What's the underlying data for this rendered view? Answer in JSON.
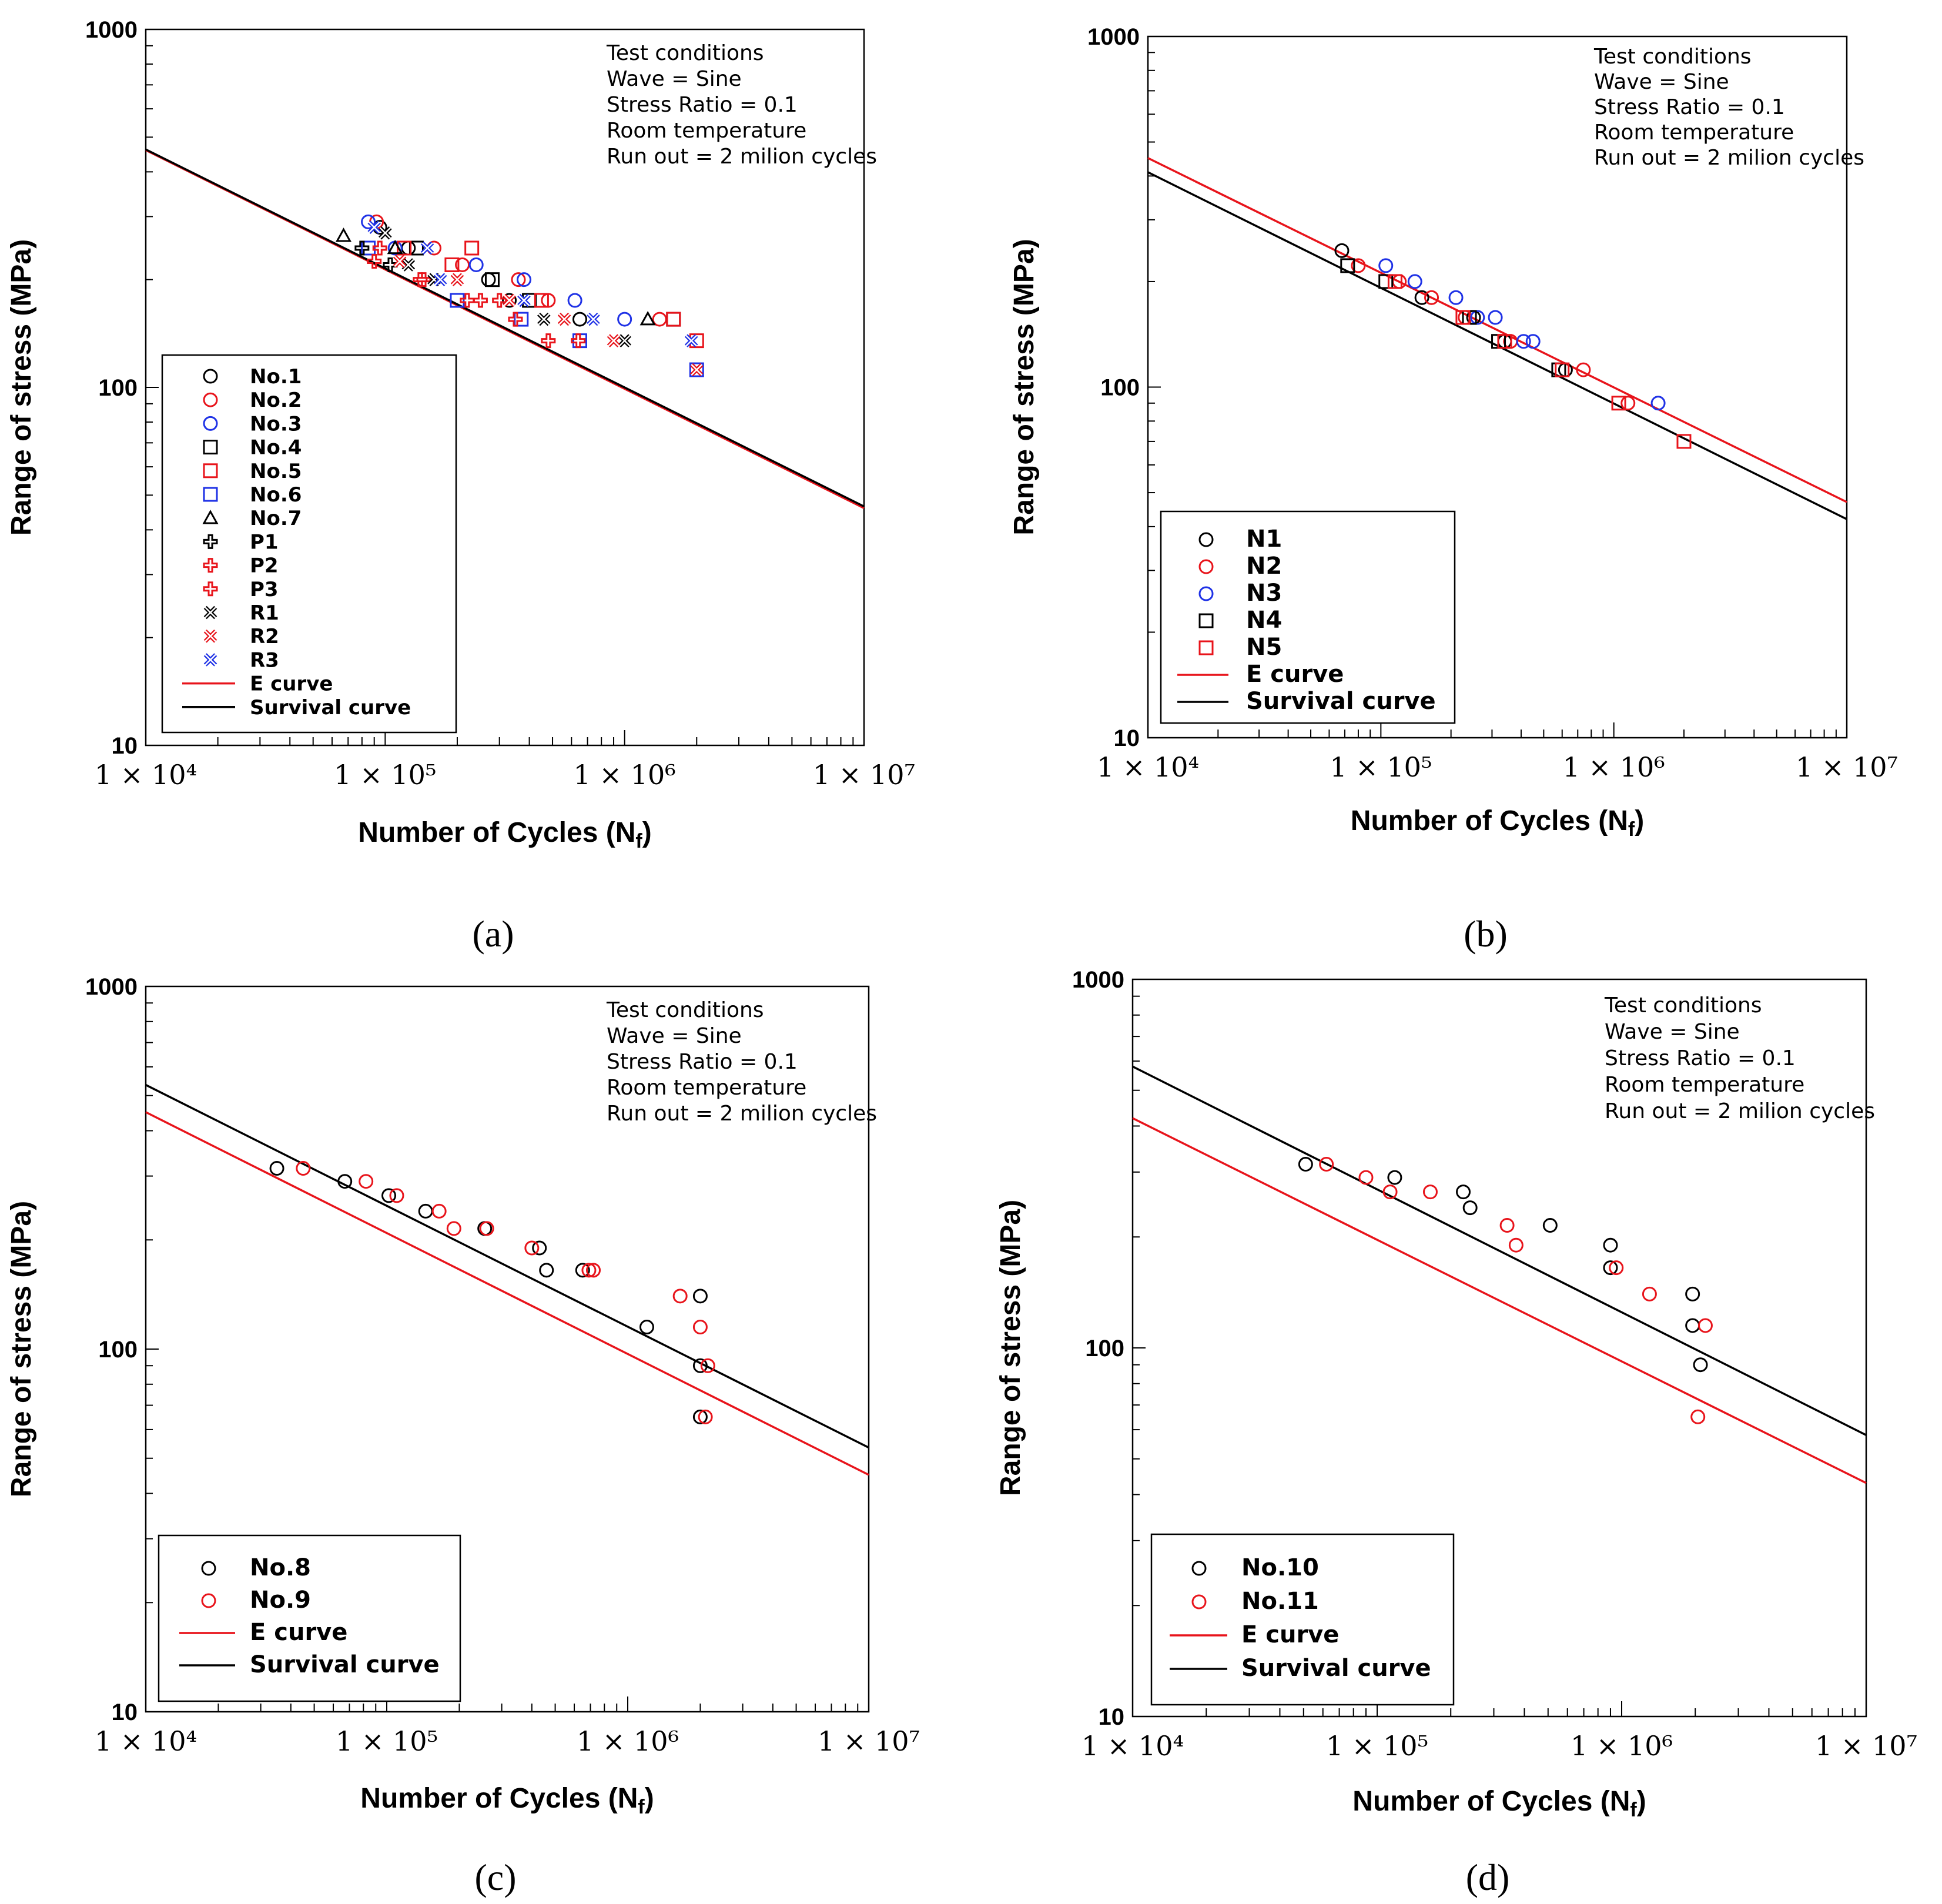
{
  "colors": {
    "black": "#000000",
    "red": "#e8141b",
    "blue": "#1f32e6"
  },
  "chart_data": [
    {
      "id": "a",
      "type": "scatter",
      "panel_label": "(a)",
      "xlabel_text": "Number of Cycles (N",
      "xlabel_sub": "f",
      "xlabel_close": ")",
      "ylabel": "Range of stress (MPa)",
      "xscale": "log",
      "yscale": "log",
      "xlim": [
        10000,
        10000000
      ],
      "ylim": [
        10,
        1000
      ],
      "x_ticks": [
        "1 × 10⁴",
        "1 × 10⁵",
        "1 × 10⁶",
        "1 × 10⁷"
      ],
      "y_ticks": [
        "10",
        "100",
        "1000"
      ],
      "conditions": [
        "Test conditions",
        "Wave = Sine",
        "Stress Ratio = 0.1",
        "Room temperature",
        "Run out = 2 milion cycles"
      ],
      "lines": [
        {
          "name": "E curve",
          "color": "red",
          "points": [
            [
              10000,
              460
            ],
            [
              10000000,
              46
            ]
          ]
        },
        {
          "name": "Survival curve",
          "color": "black",
          "points": [
            [
              10000,
              462
            ],
            [
              10000000,
              46.5
            ]
          ]
        }
      ],
      "series": [
        {
          "name": "No.1",
          "marker": "circle",
          "color": "black",
          "points": [
            [
              95000,
              280
            ],
            [
              125000,
              245
            ],
            [
              270000,
              200
            ],
            [
              330000,
              175
            ],
            [
              650000,
              155
            ]
          ]
        },
        {
          "name": "No.2",
          "marker": "circle",
          "color": "red",
          "points": [
            [
              92000,
              290
            ],
            [
              160000,
              245
            ],
            [
              210000,
              220
            ],
            [
              360000,
              200
            ],
            [
              480000,
              175
            ],
            [
              1400000,
              155
            ]
          ]
        },
        {
          "name": "No.3",
          "marker": "circle",
          "color": "blue",
          "points": [
            [
              85000,
              290
            ],
            [
              110000,
              245
            ],
            [
              240000,
              220
            ],
            [
              380000,
              200
            ],
            [
              620000,
              175
            ],
            [
              1000000,
              155
            ]
          ]
        },
        {
          "name": "No.4",
          "marker": "square",
          "color": "black",
          "points": [
            [
              135000,
              245
            ],
            [
              280000,
              200
            ],
            [
              400000,
              175
            ],
            [
              1600000,
              155
            ]
          ]
        },
        {
          "name": "No.5",
          "marker": "square",
          "color": "red",
          "points": [
            [
              120000,
              245
            ],
            [
              230000,
              245
            ],
            [
              190000,
              220
            ],
            [
              450000,
              175
            ],
            [
              1600000,
              155
            ],
            [
              2000000,
              135
            ]
          ]
        },
        {
          "name": "No.6",
          "marker": "square",
          "color": "blue",
          "points": [
            [
              85000,
              245
            ],
            [
              200000,
              175
            ],
            [
              370000,
              155
            ],
            [
              650000,
              135
            ],
            [
              2000000,
              112
            ]
          ]
        },
        {
          "name": "No.7",
          "marker": "triangle",
          "color": "black",
          "points": [
            [
              67000,
              265
            ],
            [
              110000,
              245
            ],
            [
              1250000,
              155
            ]
          ]
        },
        {
          "name": "P1",
          "marker": "plus",
          "color": "black",
          "points": [
            [
              80000,
              245
            ],
            [
              105000,
              220
            ]
          ]
        },
        {
          "name": "P2",
          "marker": "plus",
          "color": "red",
          "points": [
            [
              95000,
              245
            ],
            [
              140000,
              200
            ],
            [
              220000,
              175
            ],
            [
              300000,
              175
            ],
            [
              350000,
              155
            ]
          ]
        },
        {
          "name": "P3",
          "marker": "plus",
          "color": "red",
          "points": [
            [
              90000,
              225
            ],
            [
              145000,
              200
            ],
            [
              250000,
              175
            ],
            [
              480000,
              135
            ],
            [
              640000,
              135
            ]
          ]
        },
        {
          "name": "R1",
          "marker": "x",
          "color": "black",
          "points": [
            [
              100000,
              270
            ],
            [
              125000,
              220
            ],
            [
              160000,
              200
            ],
            [
              460000,
              155
            ],
            [
              1000000,
              135
            ]
          ]
        },
        {
          "name": "R2",
          "marker": "x",
          "color": "red",
          "points": [
            [
              115000,
              225
            ],
            [
              200000,
              200
            ],
            [
              330000,
              175
            ],
            [
              560000,
              155
            ],
            [
              900000,
              135
            ],
            [
              2000000,
              112
            ]
          ]
        },
        {
          "name": "R3",
          "marker": "x",
          "color": "blue",
          "points": [
            [
              90000,
              280
            ],
            [
              150000,
              245
            ],
            [
              170000,
              200
            ],
            [
              380000,
              175
            ],
            [
              740000,
              155
            ],
            [
              1900000,
              135
            ]
          ]
        }
      ]
    },
    {
      "id": "b",
      "type": "scatter",
      "panel_label": "(b)",
      "xlabel_text": "Number of Cycles (N",
      "xlabel_sub": "f",
      "xlabel_close": ")",
      "ylabel": "Range of stress (MPa)",
      "xscale": "log",
      "yscale": "log",
      "xlim": [
        10000,
        10000000
      ],
      "ylim": [
        10,
        1000
      ],
      "x_ticks": [
        "1 × 10⁴",
        "1 × 10⁵",
        "1 × 10⁶",
        "1 × 10⁷"
      ],
      "y_ticks": [
        "10",
        "100",
        "1000"
      ],
      "conditions": [
        "Test conditions",
        "Wave = Sine",
        "Stress Ratio = 0.1",
        "Room temperature",
        "Run out = 2 milion cycles"
      ],
      "lines": [
        {
          "name": "E curve",
          "color": "red",
          "points": [
            [
              10000,
              450
            ],
            [
              10000000,
              47
            ]
          ]
        },
        {
          "name": "Survival curve",
          "color": "black",
          "points": [
            [
              10000,
              410
            ],
            [
              10000000,
              42
            ]
          ]
        }
      ],
      "series": [
        {
          "name": "N1",
          "marker": "circle",
          "color": "black",
          "points": [
            [
              68000,
              245
            ],
            [
              150000,
              180
            ],
            [
              250000,
              158
            ],
            [
              340000,
              135
            ],
            [
              620000,
              112
            ]
          ]
        },
        {
          "name": "N2",
          "marker": "circle",
          "color": "red",
          "points": [
            [
              80000,
              222
            ],
            [
              120000,
              200
            ],
            [
              165000,
              180
            ],
            [
              230000,
              158
            ],
            [
              360000,
              135
            ],
            [
              740000,
              112
            ],
            [
              1150000,
              90
            ]
          ]
        },
        {
          "name": "N3",
          "marker": "circle",
          "color": "blue",
          "points": [
            [
              105000,
              222
            ],
            [
              140000,
              200
            ],
            [
              210000,
              180
            ],
            [
              260000,
              158
            ],
            [
              310000,
              158
            ],
            [
              410000,
              135
            ],
            [
              450000,
              135
            ],
            [
              1550000,
              90
            ]
          ]
        },
        {
          "name": "N4",
          "marker": "square",
          "color": "black",
          "points": [
            [
              72000,
              222
            ],
            [
              105000,
              200
            ],
            [
              240000,
              158
            ],
            [
              320000,
              135
            ],
            [
              580000,
              112
            ]
          ]
        },
        {
          "name": "N5",
          "marker": "square",
          "color": "red",
          "points": [
            [
              115000,
              200
            ],
            [
              225000,
              158
            ],
            [
              340000,
              135
            ],
            [
              600000,
              112
            ],
            [
              1050000,
              90
            ],
            [
              2000000,
              70
            ]
          ]
        }
      ]
    },
    {
      "id": "c",
      "type": "scatter",
      "panel_label": "(c)",
      "xlabel_text": "Number of Cycles (N",
      "xlabel_sub": "f",
      "xlabel_close": ")",
      "ylabel": "Range of stress (MPa)",
      "xscale": "log",
      "yscale": "log",
      "xlim": [
        10000,
        10000000
      ],
      "ylim": [
        10,
        1000
      ],
      "x_ticks": [
        "1 × 10⁴",
        "1 × 10⁵",
        "1 × 10⁶",
        "1 × 10⁷"
      ],
      "y_ticks": [
        "10",
        "100",
        "1000"
      ],
      "conditions": [
        "Test conditions",
        "Wave = Sine",
        "Stress Ratio = 0.1",
        "Room temperature",
        "Run out = 2 milion cycles"
      ],
      "lines": [
        {
          "name": "E curve",
          "color": "red",
          "points": [
            [
              10000,
              450
            ],
            [
              10000000,
              45
            ]
          ]
        },
        {
          "name": "Survival curve",
          "color": "black",
          "points": [
            [
              10000,
              535
            ],
            [
              10000000,
              53.5
            ]
          ]
        }
      ],
      "series": [
        {
          "name": "No.8",
          "marker": "circle",
          "color": "black",
          "points": [
            [
              35000,
              315
            ],
            [
              67000,
              290
            ],
            [
              102000,
              265
            ],
            [
              145000,
              240
            ],
            [
              255000,
              215
            ],
            [
              430000,
              190
            ],
            [
              460000,
              165
            ],
            [
              650000,
              165
            ],
            [
              1200000,
              115
            ],
            [
              2000000,
              140
            ],
            [
              2000000,
              90
            ],
            [
              2000000,
              65
            ]
          ]
        },
        {
          "name": "No.9",
          "marker": "circle",
          "color": "red",
          "points": [
            [
              45000,
              315
            ],
            [
              82000,
              290
            ],
            [
              110000,
              265
            ],
            [
              165000,
              240
            ],
            [
              190000,
              215
            ],
            [
              260000,
              215
            ],
            [
              400000,
              190
            ],
            [
              690000,
              165
            ],
            [
              720000,
              165
            ],
            [
              1650000,
              140
            ],
            [
              2000000,
              115
            ],
            [
              2150000,
              90
            ],
            [
              2100000,
              65
            ]
          ]
        }
      ]
    },
    {
      "id": "d",
      "type": "scatter",
      "panel_label": "(d)",
      "xlabel_text": "Number of Cycles (N",
      "xlabel_sub": "f",
      "xlabel_close": ")",
      "ylabel": "Range of stress (MPa)",
      "xscale": "log",
      "yscale": "log",
      "xlim": [
        10000,
        10000000
      ],
      "ylim": [
        10,
        1000
      ],
      "x_ticks": [
        "1 × 10⁴",
        "1 × 10⁵",
        "1 × 10⁶",
        "1 × 10⁷"
      ],
      "y_ticks": [
        "10",
        "100",
        "1000"
      ],
      "conditions": [
        "Test conditions",
        "Wave = Sine",
        "Stress Ratio = 0.1",
        "Room temperature",
        "Run out = 2 milion cycles"
      ],
      "lines": [
        {
          "name": "E curve",
          "color": "red",
          "points": [
            [
              10000,
              420
            ],
            [
              10000000,
              43
            ]
          ]
        },
        {
          "name": "Survival curve",
          "color": "black",
          "points": [
            [
              10000,
              580
            ],
            [
              10000000,
              58
            ]
          ]
        }
      ],
      "series": [
        {
          "name": "No.10",
          "marker": "circle",
          "color": "black",
          "points": [
            [
              51000,
              315
            ],
            [
              118000,
              290
            ],
            [
              225000,
              265
            ],
            [
              240000,
              240
            ],
            [
              510000,
              215
            ],
            [
              900000,
              190
            ],
            [
              900000,
              165
            ],
            [
              1950000,
              140
            ],
            [
              1950000,
              115
            ],
            [
              2100000,
              90
            ]
          ]
        },
        {
          "name": "No.11",
          "marker": "circle",
          "color": "red",
          "points": [
            [
              62000,
              315
            ],
            [
              90000,
              290
            ],
            [
              113000,
              265
            ],
            [
              165000,
              265
            ],
            [
              340000,
              215
            ],
            [
              370000,
              190
            ],
            [
              950000,
              165
            ],
            [
              1300000,
              140
            ],
            [
              2200000,
              115
            ],
            [
              2050000,
              65
            ]
          ]
        }
      ]
    }
  ]
}
